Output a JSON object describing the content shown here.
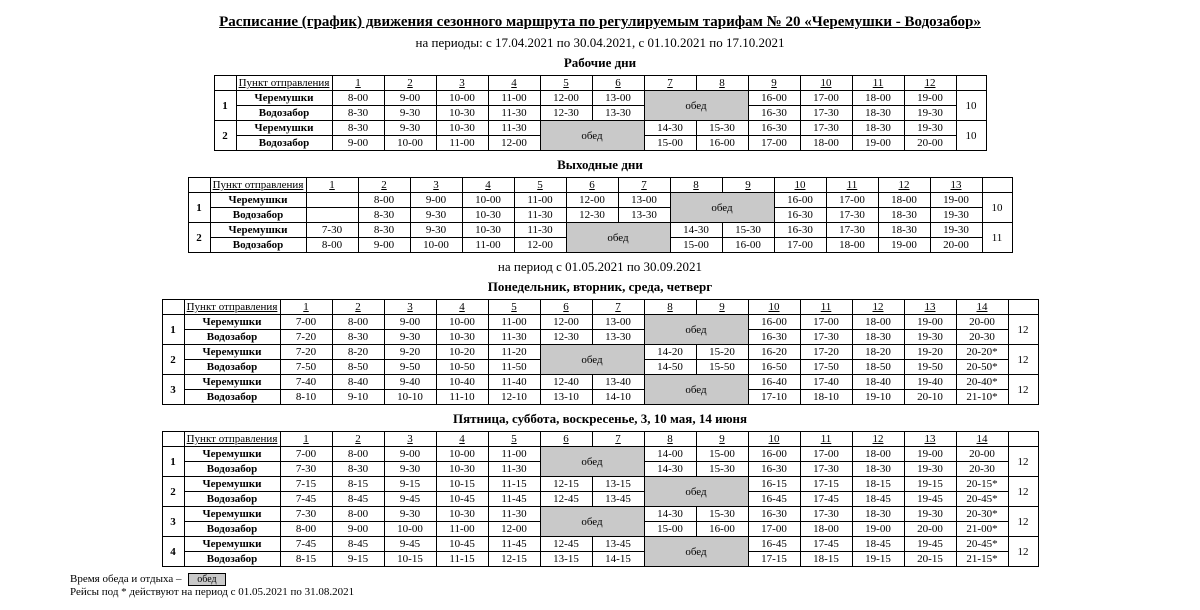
{
  "title": "Расписание (график) движения сезонного маршрута по регулируемым тарифам № 20 «Черемушки - Водозабор»",
  "period1": "на периоды: с 17.04.2021 по 30.04.2021, с 01.10.2021 по 17.10.2021",
  "h_work": "Рабочие дни",
  "h_week": "Выходные дни",
  "period2": "на период с 01.05.2021 по 30.09.2021",
  "h_mon": "Понедельник, вторник, среда, четверг",
  "h_fri": "Пятница, суббота, воскресенье, 3, 10 мая, 14 июня",
  "dep": "Пункт отправления",
  "a": "Черемушки",
  "b": "Водозабор",
  "l": "обед",
  "leg1": "Время обеда и отдыха –",
  "leg2": "Рейсы под * действуют на период с 01.05.2021 по 31.08.2021",
  "t1": {
    "cols": 12,
    "last": "10",
    "groups": [
      {
        "n": "1",
        "rows": [
          [
            "8-00",
            "9-00",
            "10-00",
            "11-00",
            "12-00",
            "13-00",
            "L",
            "L",
            "16-00",
            "17-00",
            "18-00",
            "19-00"
          ],
          [
            "8-30",
            "9-30",
            "10-30",
            "11-30",
            "12-30",
            "13-30",
            "L",
            "L",
            "16-30",
            "17-30",
            "18-30",
            "19-30"
          ]
        ]
      },
      {
        "n": "2",
        "rows": [
          [
            "8-30",
            "9-30",
            "10-30",
            "11-30",
            "L",
            "L",
            "14-30",
            "15-30",
            "16-30",
            "17-30",
            "18-30",
            "19-30"
          ],
          [
            "9-00",
            "10-00",
            "11-00",
            "12-00",
            "L",
            "L",
            "15-00",
            "16-00",
            "17-00",
            "18-00",
            "19-00",
            "20-00"
          ]
        ]
      }
    ]
  },
  "t2": {
    "cols": 13,
    "groups": [
      {
        "n": "1",
        "last": "10",
        "rows": [
          [
            "",
            "8-00",
            "9-00",
            "10-00",
            "11-00",
            "12-00",
            "13-00",
            "L",
            "L",
            "16-00",
            "17-00",
            "18-00",
            "19-00"
          ],
          [
            "",
            "8-30",
            "9-30",
            "10-30",
            "11-30",
            "12-30",
            "13-30",
            "L",
            "L",
            "16-30",
            "17-30",
            "18-30",
            "19-30"
          ]
        ]
      },
      {
        "n": "2",
        "last": "11",
        "rows": [
          [
            "7-30",
            "8-30",
            "9-30",
            "10-30",
            "11-30",
            "L",
            "L",
            "14-30",
            "15-30",
            "16-30",
            "17-30",
            "18-30",
            "19-30"
          ],
          [
            "8-00",
            "9-00",
            "10-00",
            "11-00",
            "12-00",
            "L",
            "L",
            "15-00",
            "16-00",
            "17-00",
            "18-00",
            "19-00",
            "20-00"
          ]
        ]
      }
    ]
  },
  "t3": {
    "cols": 14,
    "last": "12",
    "groups": [
      {
        "n": "1",
        "rows": [
          [
            "7-00",
            "8-00",
            "9-00",
            "10-00",
            "11-00",
            "12-00",
            "13-00",
            "L",
            "L",
            "16-00",
            "17-00",
            "18-00",
            "19-00",
            "20-00"
          ],
          [
            "7-20",
            "8-30",
            "9-30",
            "10-30",
            "11-30",
            "12-30",
            "13-30",
            "L",
            "L",
            "16-30",
            "17-30",
            "18-30",
            "19-30",
            "20-30"
          ]
        ]
      },
      {
        "n": "2",
        "rows": [
          [
            "7-20",
            "8-20",
            "9-20",
            "10-20",
            "11-20",
            "L",
            "L",
            "14-20",
            "15-20",
            "16-20",
            "17-20",
            "18-20",
            "19-20",
            "20-20*"
          ],
          [
            "7-50",
            "8-50",
            "9-50",
            "10-50",
            "11-50",
            "L",
            "L",
            "14-50",
            "15-50",
            "16-50",
            "17-50",
            "18-50",
            "19-50",
            "20-50*"
          ]
        ]
      },
      {
        "n": "3",
        "rows": [
          [
            "7-40",
            "8-40",
            "9-40",
            "10-40",
            "11-40",
            "12-40",
            "13-40",
            "L",
            "L",
            "16-40",
            "17-40",
            "18-40",
            "19-40",
            "20-40*"
          ],
          [
            "8-10",
            "9-10",
            "10-10",
            "11-10",
            "12-10",
            "13-10",
            "14-10",
            "L",
            "L",
            "17-10",
            "18-10",
            "19-10",
            "20-10",
            "21-10*"
          ]
        ]
      }
    ]
  },
  "t4": {
    "cols": 14,
    "last": "12",
    "groups": [
      {
        "n": "1",
        "rows": [
          [
            "7-00",
            "8-00",
            "9-00",
            "10-00",
            "11-00",
            "L",
            "L",
            "14-00",
            "15-00",
            "16-00",
            "17-00",
            "18-00",
            "19-00",
            "20-00"
          ],
          [
            "7-30",
            "8-30",
            "9-30",
            "10-30",
            "11-30",
            "L",
            "L",
            "14-30",
            "15-30",
            "16-30",
            "17-30",
            "18-30",
            "19-30",
            "20-30"
          ]
        ]
      },
      {
        "n": "2",
        "rows": [
          [
            "7-15",
            "8-15",
            "9-15",
            "10-15",
            "11-15",
            "12-15",
            "13-15",
            "L",
            "L",
            "16-15",
            "17-15",
            "18-15",
            "19-15",
            "20-15*"
          ],
          [
            "7-45",
            "8-45",
            "9-45",
            "10-45",
            "11-45",
            "12-45",
            "13-45",
            "L",
            "L",
            "16-45",
            "17-45",
            "18-45",
            "19-45",
            "20-45*"
          ]
        ]
      },
      {
        "n": "3",
        "rows": [
          [
            "7-30",
            "8-00",
            "9-30",
            "10-30",
            "11-30",
            "L",
            "L",
            "14-30",
            "15-30",
            "16-30",
            "17-30",
            "18-30",
            "19-30",
            "20-30*"
          ],
          [
            "8-00",
            "9-00",
            "10-00",
            "11-00",
            "12-00",
            "L",
            "L",
            "15-00",
            "16-00",
            "17-00",
            "18-00",
            "19-00",
            "20-00",
            "21-00*"
          ]
        ]
      },
      {
        "n": "4",
        "rows": [
          [
            "7-45",
            "8-45",
            "9-45",
            "10-45",
            "11-45",
            "12-45",
            "13-45",
            "L",
            "L",
            "16-45",
            "17-45",
            "18-45",
            "19-45",
            "20-45*"
          ],
          [
            "8-15",
            "9-15",
            "10-15",
            "11-15",
            "12-15",
            "13-15",
            "14-15",
            "L",
            "L",
            "17-15",
            "18-15",
            "19-15",
            "20-15",
            "21-15*"
          ]
        ]
      }
    ]
  },
  "layout": {
    "col_idx_w": 22,
    "col_dep_w": 96,
    "col_time_w": 52,
    "col_last_w": 30
  }
}
